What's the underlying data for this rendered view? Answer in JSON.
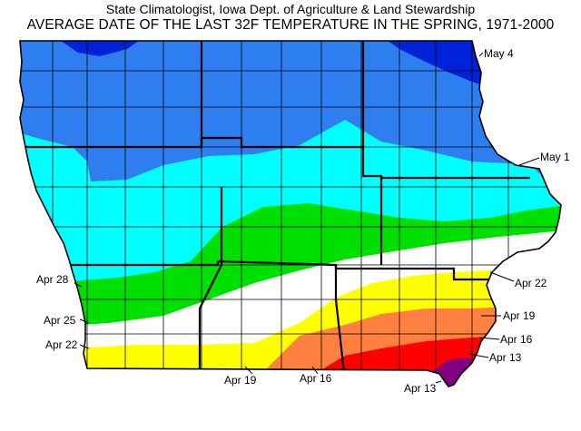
{
  "header": {
    "line1": "State Climatologist, Iowa Dept. of Agriculture & Land Stewardship",
    "line2": "AVERAGE DATE OF THE LAST 32F TEMPERATURE IN THE SPRING, 1971-2000"
  },
  "legend_colors": {
    "may4": "#0022d8",
    "may1_band": "#2f7ef0",
    "apr28_band": "#00ffff",
    "apr25_band": "#00e000",
    "apr22_band": "#ffffff",
    "apr19_band": "#ffff00",
    "apr16_band": "#ff8040",
    "apr13_band": "#ff0000",
    "earliest": "#800080",
    "county_lines": "#000000"
  },
  "labels": {
    "may4": "May 4",
    "may1": "May 1",
    "apr28": "Apr 28",
    "apr25": "Apr 25",
    "apr22_west": "Apr 22",
    "apr22_east": "Apr 22",
    "apr19_east": "Apr 19",
    "apr16_east": "Apr 16",
    "apr13_east": "Apr 13",
    "apr19_south": "Apr 19",
    "apr16_south": "Apr 16",
    "apr13_south": "Apr 13"
  }
}
